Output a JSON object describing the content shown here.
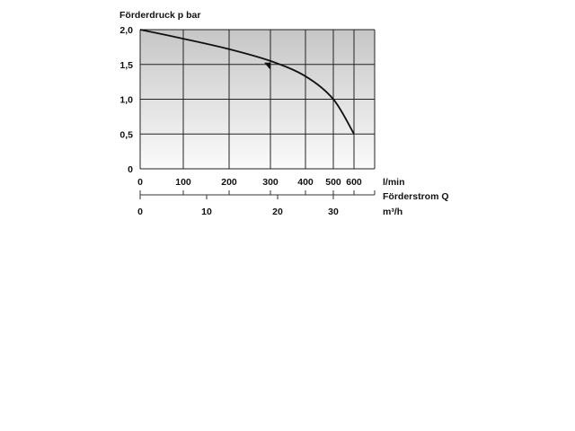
{
  "chart_data": {
    "type": "line",
    "title": "",
    "ylabel": "Förderdruck p bar",
    "xlabel": "Förderstrom Q",
    "x_unit_primary": "l/min",
    "x_unit_secondary": "m³/h",
    "ylim": [
      0,
      2.0
    ],
    "xlim": [
      0,
      650
    ],
    "y_ticks": [
      {
        "value": 0,
        "label": "0"
      },
      {
        "value": 0.5,
        "label": "0,5"
      },
      {
        "value": 1.0,
        "label": "1,0"
      },
      {
        "value": 1.5,
        "label": "1,5"
      },
      {
        "value": 2.0,
        "label": "2,0"
      }
    ],
    "x_ticks": [
      {
        "value": 0,
        "label": "0"
      },
      {
        "value": 100,
        "label": "100"
      },
      {
        "value": 200,
        "label": "200"
      },
      {
        "value": 300,
        "label": "300"
      },
      {
        "value": 400,
        "label": "400"
      },
      {
        "value": 500,
        "label": "500"
      },
      {
        "value": 600,
        "label": "600"
      }
    ],
    "x2_ticks": [
      {
        "value": 0,
        "label": "0"
      },
      {
        "value": 10,
        "label": "10"
      },
      {
        "value": 20,
        "label": "20"
      },
      {
        "value": 30,
        "label": "30"
      }
    ],
    "grid": true,
    "series": [
      {
        "x": [
          0,
          100,
          200,
          300,
          400,
          500,
          600
        ],
        "y": [
          2.0,
          1.87,
          1.72,
          1.55,
          1.33,
          1.0,
          0.5
        ]
      }
    ],
    "annotations": [
      {
        "type": "triangle-marker",
        "x": 300,
        "y": 1.5
      }
    ],
    "colors": {
      "line": "#111111",
      "grid": "#222222",
      "background_top": "#c8c8c8",
      "background_bottom": "#fafafa"
    }
  }
}
